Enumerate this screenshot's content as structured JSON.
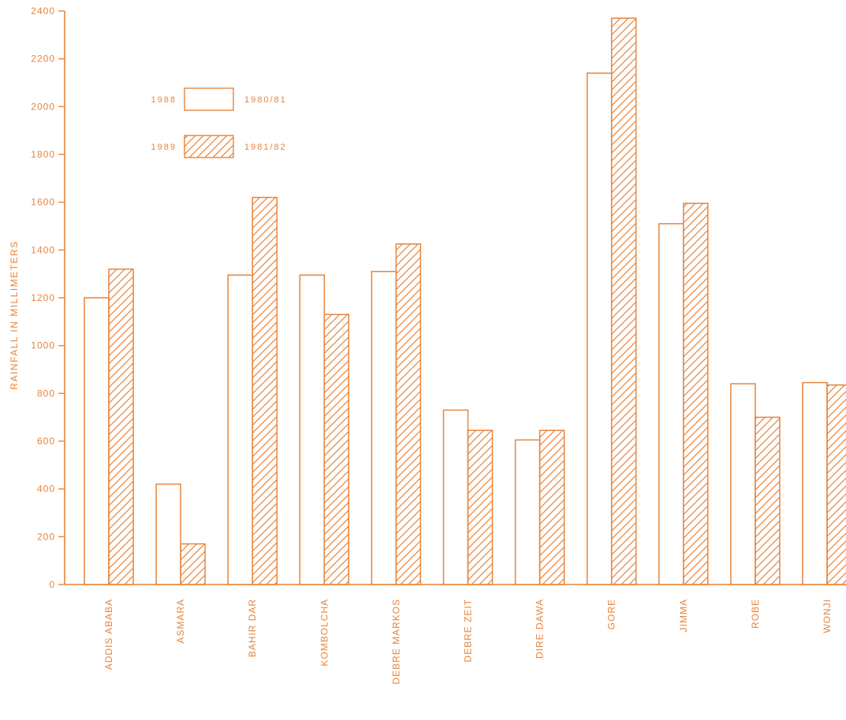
{
  "chart_data": {
    "type": "bar",
    "title": "",
    "ylabel": "RAINFALL IN MILLIMETERS",
    "xlabel": "",
    "ylim": [
      0,
      2400
    ],
    "yticks": [
      "0",
      "200",
      "400",
      "600",
      "800",
      "1000",
      "1200",
      "1400",
      "1600",
      "1800",
      "2000",
      "2200",
      "2400"
    ],
    "categories": [
      "ADDIS ABABA",
      "ASMARA",
      "BAHIR DAR",
      "KOMBOLCHA",
      "DEBRE MARKOS",
      "DEBRE ZEIT",
      "DIRE DAWA",
      "GORE",
      "JIMMA",
      "ROBE",
      "WONJI"
    ],
    "series": [
      {
        "name": "1988",
        "name2": "1980/81",
        "pattern": "open",
        "values": [
          1200,
          420,
          1295,
          1295,
          1310,
          730,
          605,
          2140,
          1510,
          840,
          845
        ]
      },
      {
        "name": "1989",
        "name2": "1981/82",
        "pattern": "hatched",
        "values": [
          1320,
          170,
          1620,
          1130,
          1425,
          645,
          645,
          2370,
          1595,
          700,
          835
        ]
      }
    ],
    "legend_position": "top-left",
    "grid": false,
    "colors": {
      "ink": "#e8843a"
    }
  }
}
